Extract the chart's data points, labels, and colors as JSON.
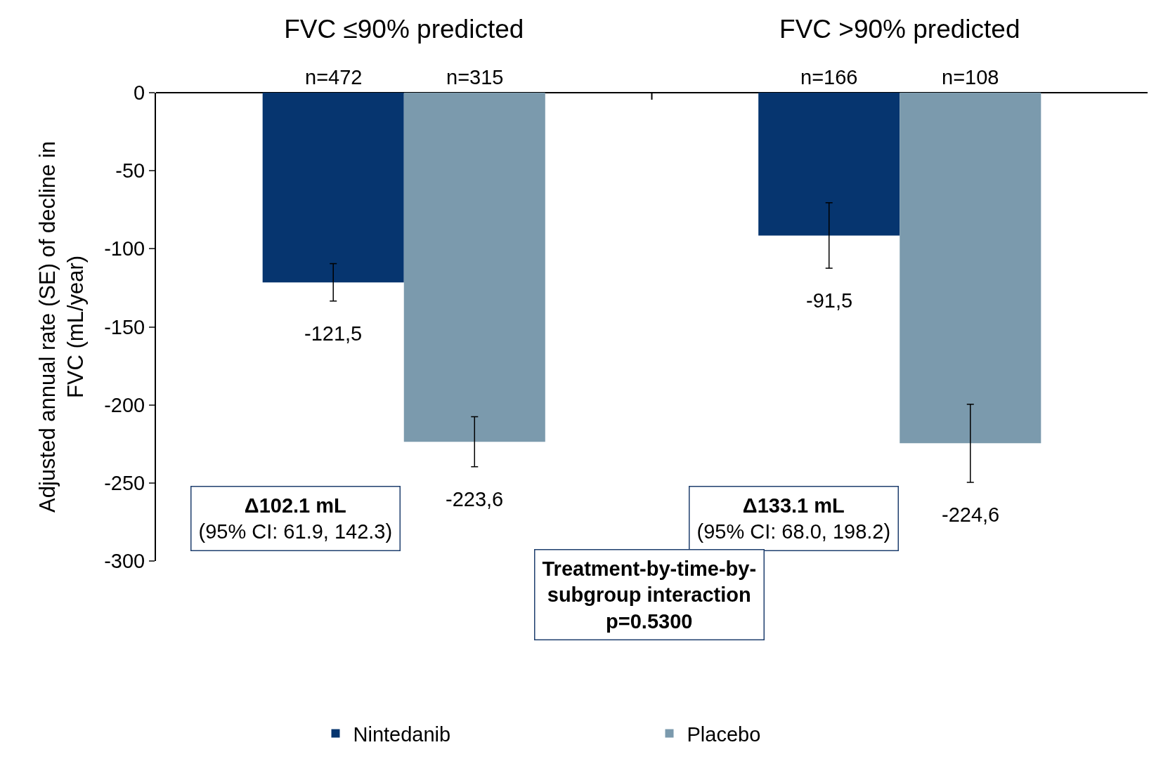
{
  "chart_data": {
    "type": "bar",
    "ylabel": "Adjusted annual rate (SE) of decline in FVC (mL/year)",
    "categories": [
      "FVC ≤90% predicted",
      "FVC >90% predicted"
    ],
    "series": [
      {
        "name": "Nintedanib",
        "color": "#06356f",
        "values": [
          -121.5,
          -91.5
        ],
        "errors": [
          12,
          21
        ],
        "value_labels": [
          "-121,5",
          "-91,5"
        ]
      },
      {
        "name": "Placebo",
        "color": "#7b9aad",
        "values": [
          -223.6,
          -224.6
        ],
        "errors": [
          16,
          25
        ],
        "value_labels": [
          "-223,6",
          "-224,6"
        ]
      }
    ],
    "ylim": [
      -300,
      0
    ],
    "yticks": [
      0,
      -50,
      -100,
      -150,
      -200,
      -250,
      -300
    ],
    "grid": false,
    "legend": "bottom",
    "annotations": [
      {
        "text": "n=472",
        "x": "FVC ≤90% predicted",
        "y": 0
      },
      {
        "text": "n=315",
        "x": "FVC ≤90% predicted",
        "y": 0
      },
      {
        "text": "n=166",
        "x": "FVC >90% predicted",
        "y": 0
      },
      {
        "text": "n=108",
        "x": "FVC >90% predicted",
        "y": 0
      },
      "Δ102.1 mL\n(95% CI: 61.9, 142.3)",
      "Δ133.1 mL\n(95% CI: 68.0, 198.2)",
      "Treatment-by-time-by-\nsubgroup interaction\np=0.5300"
    ]
  }
}
